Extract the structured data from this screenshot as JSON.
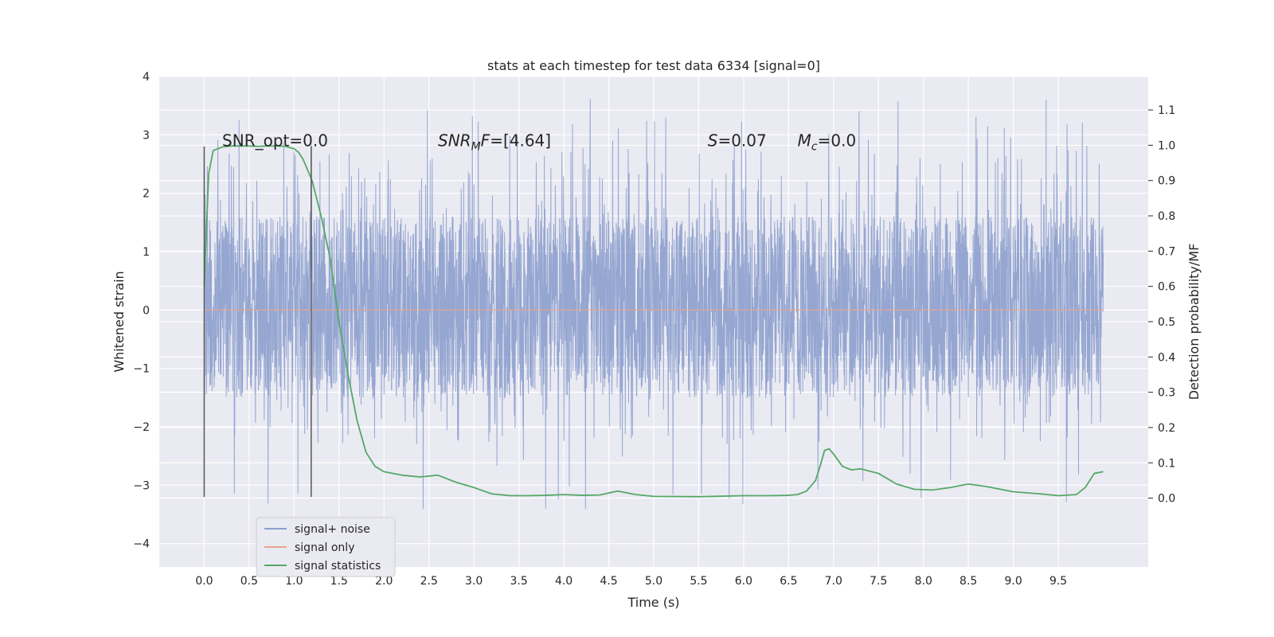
{
  "chart_data": {
    "type": "line",
    "title": "stats at each timestep for test data 6334 [signal=0]",
    "xlabel": "Time (s)",
    "ylabel": "Whitened strain",
    "y2label": "Detection probability/MF",
    "xlim": [
      -0.5,
      10.5
    ],
    "ylim": [
      -4.4,
      4.0
    ],
    "y2lim": [
      -0.195,
      1.195
    ],
    "xticks": [
      0.0,
      0.5,
      1.0,
      1.5,
      2.0,
      2.5,
      3.0,
      3.5,
      4.0,
      4.5,
      5.0,
      5.5,
      6.0,
      6.5,
      7.0,
      7.5,
      8.0,
      8.5,
      9.0,
      9.5
    ],
    "xtick_labels": [
      "0.0",
      "0.5",
      "1.0",
      "1.5",
      "2.0",
      "2.5",
      "3.0",
      "3.5",
      "4.0",
      "4.5",
      "5.0",
      "5.5",
      "6.0",
      "6.5",
      "7.0",
      "7.5",
      "8.0",
      "8.5",
      "9.0",
      "9.5"
    ],
    "yticks": [
      -4,
      -3,
      -2,
      -1,
      0,
      1,
      2,
      3,
      4
    ],
    "ytick_labels": [
      "−4",
      "−3",
      "−2",
      "−1",
      "0",
      "1",
      "2",
      "3",
      "4"
    ],
    "y2ticks": [
      0.0,
      0.1,
      0.2,
      0.3,
      0.4,
      0.5,
      0.6,
      0.7,
      0.8,
      0.9,
      1.0,
      1.1
    ],
    "y2tick_labels": [
      "0.0",
      "0.1",
      "0.2",
      "0.3",
      "0.4",
      "0.5",
      "0.6",
      "0.7",
      "0.8",
      "0.9",
      "1.0",
      "1.1"
    ],
    "grid": true,
    "legend_placement": "lower-left",
    "legend": [
      {
        "label": "signal+ noise",
        "color": "#8c9fcd"
      },
      {
        "label": "signal only",
        "color": "#e8a68a"
      },
      {
        "label": "signal statistics",
        "color": "#55a868"
      }
    ],
    "annotations": [
      {
        "id": "snr-opt",
        "text": "SNR_opt=0.0",
        "x": 0.2,
        "y": 2.9
      },
      {
        "id": "snr-mf",
        "text_parts": [
          "SNR",
          "M",
          "F=[4.64]"
        ],
        "x": 2.6,
        "y": 2.9
      },
      {
        "id": "s-stat",
        "text_parts": [
          "S",
          "=0.07"
        ],
        "x": 5.6,
        "y": 2.9
      },
      {
        "id": "mc",
        "text_parts": [
          "M",
          "c",
          "=0.0"
        ],
        "x": 6.6,
        "y": 2.9
      }
    ],
    "vlines": [
      {
        "x": 0.0,
        "ymin": -3.2,
        "ymax": 2.8
      },
      {
        "x": 1.19,
        "ymin": -3.2,
        "ymax": 2.8
      }
    ],
    "noise_band": {
      "x_start": 0.0,
      "x_end": 10.0,
      "core_low": -1.5,
      "core_high": 1.6,
      "peak_max": 3.65,
      "trough_min": -4.05
    },
    "series": [
      {
        "name": "signal only",
        "color": "#e8a68a",
        "x": [
          0.0,
          10.0
        ],
        "y": [
          0.0,
          0.0
        ]
      },
      {
        "name": "signal statistics",
        "color": "#55a868",
        "axis": "right",
        "x": [
          0.0,
          0.05,
          0.1,
          0.15,
          0.2,
          0.3,
          0.4,
          0.5,
          0.6,
          0.7,
          0.8,
          0.9,
          1.0,
          1.05,
          1.1,
          1.15,
          1.2,
          1.25,
          1.3,
          1.4,
          1.5,
          1.6,
          1.7,
          1.8,
          1.9,
          2.0,
          2.2,
          2.4,
          2.6,
          2.8,
          3.0,
          3.2,
          3.4,
          3.6,
          3.8,
          4.0,
          4.2,
          4.4,
          4.6,
          4.8,
          5.0,
          5.5,
          6.0,
          6.3,
          6.5,
          6.6,
          6.7,
          6.8,
          6.85,
          6.9,
          6.95,
          7.0,
          7.1,
          7.2,
          7.3,
          7.5,
          7.7,
          7.9,
          8.1,
          8.3,
          8.5,
          8.7,
          9.0,
          9.3,
          9.5,
          9.7,
          9.8,
          9.9,
          10.0
        ],
        "y": [
          0.6,
          0.92,
          0.985,
          0.99,
          0.995,
          0.998,
          0.998,
          0.998,
          0.997,
          0.998,
          0.998,
          0.997,
          0.99,
          0.98,
          0.96,
          0.93,
          0.9,
          0.85,
          0.8,
          0.68,
          0.5,
          0.35,
          0.22,
          0.13,
          0.09,
          0.075,
          0.065,
          0.06,
          0.065,
          0.045,
          0.03,
          0.012,
          0.007,
          0.007,
          0.008,
          0.01,
          0.008,
          0.009,
          0.02,
          0.01,
          0.005,
          0.004,
          0.007,
          0.007,
          0.008,
          0.01,
          0.02,
          0.05,
          0.09,
          0.135,
          0.14,
          0.125,
          0.09,
          0.08,
          0.083,
          0.07,
          0.04,
          0.025,
          0.023,
          0.03,
          0.04,
          0.033,
          0.018,
          0.012,
          0.007,
          0.01,
          0.03,
          0.07,
          0.075
        ]
      }
    ]
  }
}
